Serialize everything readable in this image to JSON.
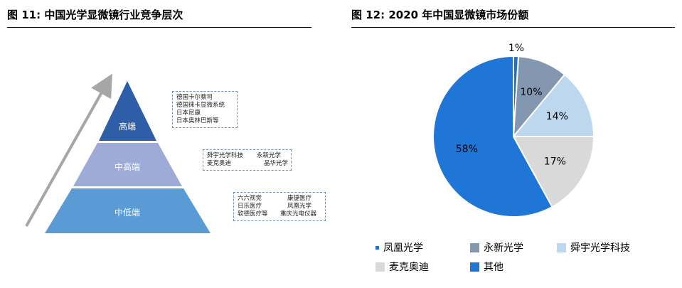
{
  "left_figure": {
    "title": "图 11:  中国光学显微镜行业竞争层次",
    "tiers": [
      {
        "label": "高端",
        "color": "#2e5ea8"
      },
      {
        "label": "中高端",
        "color": "#9dabd6"
      },
      {
        "label": "中低端",
        "color": "#5b9bd5"
      }
    ],
    "boxes": [
      {
        "rows": [
          [
            "德国卡尔蔡司"
          ],
          [
            "德国徕卡显微系统"
          ],
          [
            "日本尼康"
          ],
          [
            "日本奥林巴斯等"
          ]
        ]
      },
      {
        "rows": [
          [
            "舜宇光学科技",
            "永新光学"
          ],
          [
            "麦克奥迪",
            "晶华光学"
          ]
        ]
      },
      {
        "rows": [
          [
            "六六视觉",
            "康捷医疗"
          ],
          [
            "日乐医疗",
            "凤凰光学"
          ],
          [
            "软德医疗等",
            "重庆光电仪器"
          ]
        ]
      }
    ]
  },
  "right_figure": {
    "title": "图 12:  2020 年中国显微镜市场份额"
  },
  "chart_data": {
    "type": "pie",
    "title": "图 12:  2020 年中国显微镜市场份额",
    "slices": [
      {
        "name": "凤凰光学",
        "value": 1,
        "label": "1%",
        "color": "#1f6fcf"
      },
      {
        "name": "永新光学",
        "value": 10,
        "label": "10%",
        "color": "#8497b0"
      },
      {
        "name": "舜宇光学科技",
        "value": 14,
        "label": "14%",
        "color": "#bdd7ee"
      },
      {
        "name": "麦克奥迪",
        "value": 17,
        "label": "17%",
        "color": "#d9d9d9"
      },
      {
        "name": "其他",
        "value": 58,
        "label": "58%",
        "color": "#1f76d6"
      }
    ],
    "start": "12 o'clock",
    "direction": "clockwise",
    "legend_position": "bottom"
  }
}
